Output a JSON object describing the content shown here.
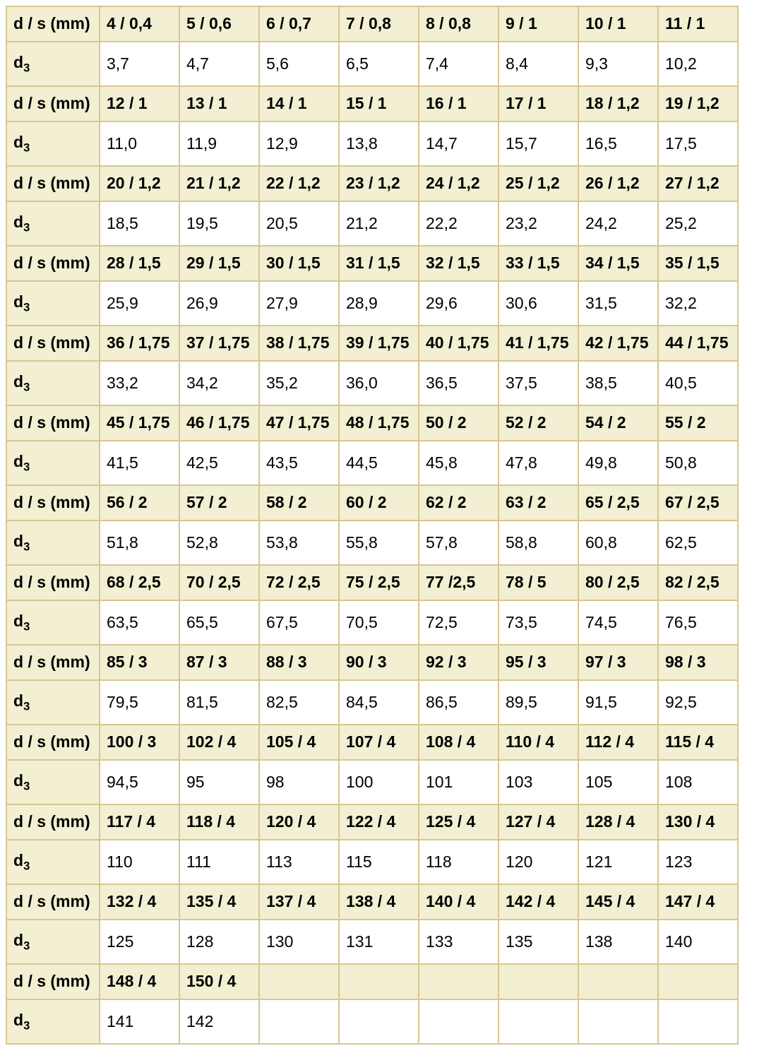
{
  "table": {
    "header_row_label": "d / s (mm)",
    "d3_label": {
      "base": "d",
      "sub": "3"
    },
    "colors": {
      "header_bg": "#f2efd2",
      "border": "#d6c791",
      "data_bg": "#ffffff",
      "text": "#000000"
    },
    "groups": [
      {
        "headers": [
          "4 / 0,4",
          "5 / 0,6",
          "6 / 0,7",
          "7 / 0,8",
          "8 / 0,8",
          "9 / 1",
          "10 / 1",
          "11 / 1"
        ],
        "values": [
          "3,7",
          "4,7",
          "5,6",
          "6,5",
          "7,4",
          "8,4",
          "9,3",
          "10,2"
        ]
      },
      {
        "headers": [
          "12 / 1",
          "13 / 1",
          "14 / 1",
          "15 / 1",
          "16 / 1",
          "17 / 1",
          "18 / 1,2",
          "19 / 1,2"
        ],
        "values": [
          "11,0",
          "11,9",
          "12,9",
          "13,8",
          "14,7",
          "15,7",
          "16,5",
          "17,5"
        ]
      },
      {
        "headers": [
          "20 / 1,2",
          "21 / 1,2",
          "22 / 1,2",
          "23 / 1,2",
          "24 / 1,2",
          "25 / 1,2",
          "26 / 1,2",
          "27 / 1,2"
        ],
        "values": [
          "18,5",
          "19,5",
          "20,5",
          "21,2",
          "22,2",
          "23,2",
          "24,2",
          "25,2"
        ]
      },
      {
        "headers": [
          "28 / 1,5",
          "29 / 1,5",
          "30 / 1,5",
          "31 / 1,5",
          "32 / 1,5",
          "33 / 1,5",
          "34 / 1,5",
          "35 / 1,5"
        ],
        "values": [
          "25,9",
          "26,9",
          "27,9",
          "28,9",
          "29,6",
          "30,6",
          "31,5",
          "32,2"
        ]
      },
      {
        "headers": [
          "36 / 1,75",
          "37 / 1,75",
          "38 / 1,75",
          "39 / 1,75",
          "40 / 1,75",
          "41 / 1,75",
          "42 / 1,75",
          "44 / 1,75"
        ],
        "values": [
          "33,2",
          "34,2",
          "35,2",
          "36,0",
          "36,5",
          "37,5",
          "38,5",
          "40,5"
        ]
      },
      {
        "headers": [
          "45 / 1,75",
          "46 / 1,75",
          "47 / 1,75",
          "48 / 1,75",
          "50 / 2",
          "52 / 2",
          "54 / 2",
          "55 / 2"
        ],
        "values": [
          "41,5",
          "42,5",
          "43,5",
          "44,5",
          "45,8",
          "47,8",
          "49,8",
          "50,8"
        ]
      },
      {
        "headers": [
          "56 / 2",
          "57 / 2",
          "58 / 2",
          "60 / 2",
          "62 / 2",
          "63 / 2",
          "65 / 2,5",
          "67 / 2,5"
        ],
        "values": [
          "51,8",
          "52,8",
          "53,8",
          "55,8",
          "57,8",
          "58,8",
          "60,8",
          "62,5"
        ]
      },
      {
        "headers": [
          "68 / 2,5",
          "70 / 2,5",
          "72 / 2,5",
          "75 / 2,5",
          "77 /2,5",
          "78 / 5",
          "80 / 2,5",
          "82 / 2,5"
        ],
        "values": [
          "63,5",
          "65,5",
          "67,5",
          "70,5",
          "72,5",
          "73,5",
          "74,5",
          "76,5"
        ]
      },
      {
        "headers": [
          "85 / 3",
          "87 / 3",
          "88 / 3",
          "90 / 3",
          "92 / 3",
          "95 / 3",
          "97 / 3",
          "98 / 3"
        ],
        "values": [
          "79,5",
          "81,5",
          "82,5",
          "84,5",
          "86,5",
          "89,5",
          "91,5",
          "92,5"
        ]
      },
      {
        "headers": [
          "100 / 3",
          "102 / 4",
          "105 / 4",
          "107 / 4",
          "108 / 4",
          "110 / 4",
          "112 / 4",
          "115 / 4"
        ],
        "values": [
          "94,5",
          "95",
          "98",
          "100",
          "101",
          "103",
          "105",
          "108"
        ]
      },
      {
        "headers": [
          "117 / 4",
          "118 / 4",
          "120 / 4",
          "122 / 4",
          "125 / 4",
          "127 / 4",
          "128 / 4",
          "130 / 4"
        ],
        "values": [
          "110",
          "111",
          "113",
          "115",
          "118",
          "120",
          "121",
          "123"
        ]
      },
      {
        "headers": [
          "132 / 4",
          "135 / 4",
          "137 / 4",
          "138 / 4",
          "140 / 4",
          "142 / 4",
          "145 / 4",
          "147 / 4"
        ],
        "values": [
          "125",
          "128",
          "130",
          "131",
          "133",
          "135",
          "138",
          "140"
        ]
      },
      {
        "headers": [
          "148 / 4",
          "150 / 4",
          "",
          "",
          "",
          "",
          "",
          ""
        ],
        "values": [
          "141",
          "142",
          "",
          "",
          "",
          "",
          "",
          ""
        ]
      }
    ]
  }
}
